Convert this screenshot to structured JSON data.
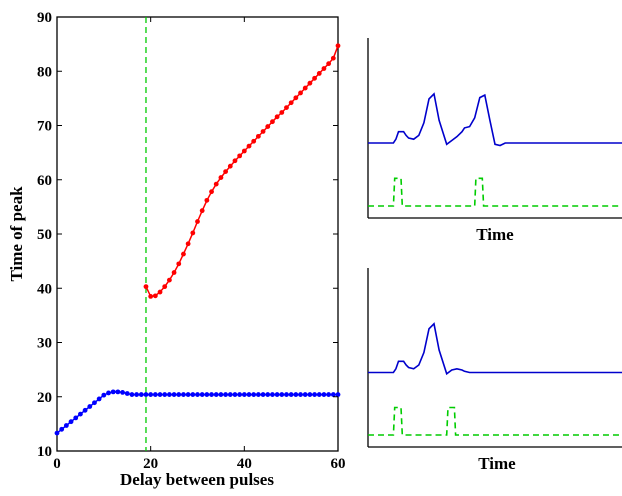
{
  "chart_data": [
    {
      "type": "scatter",
      "xlabel": "Delay between pulses",
      "ylabel": "Time of peak",
      "xlim": [
        0,
        60
      ],
      "ylim": [
        10,
        90
      ],
      "xticks": [
        0,
        20,
        40,
        60
      ],
      "yticks": [
        10,
        20,
        30,
        40,
        50,
        60,
        70,
        80,
        90
      ],
      "grid": false,
      "vertical_line": {
        "x": 19,
        "style": "dashed",
        "color": "#00cc00"
      },
      "series": [
        {
          "color": "#0000ff",
          "x": [
            0,
            1,
            2,
            3,
            4,
            5,
            6,
            7,
            8,
            9,
            10,
            11,
            12,
            13,
            14,
            15,
            16,
            17,
            18,
            19,
            20,
            21,
            22,
            23,
            24,
            25,
            26,
            27,
            28,
            29,
            30,
            31,
            32,
            33,
            34,
            35,
            36,
            37,
            38,
            39,
            40,
            41,
            42,
            43,
            44,
            45,
            46,
            47,
            48,
            49,
            50,
            51,
            52,
            53,
            54,
            55,
            56,
            57,
            58,
            59,
            60
          ],
          "y": [
            13.3,
            14.0,
            14.7,
            15.4,
            16.1,
            16.8,
            17.5,
            18.2,
            18.9,
            19.6,
            20.3,
            20.7,
            20.9,
            20.9,
            20.8,
            20.6,
            20.4,
            20.4,
            20.4,
            20.4,
            20.4,
            20.4,
            20.4,
            20.4,
            20.4,
            20.4,
            20.4,
            20.4,
            20.4,
            20.4,
            20.4,
            20.4,
            20.4,
            20.4,
            20.4,
            20.4,
            20.4,
            20.4,
            20.4,
            20.4,
            20.4,
            20.4,
            20.4,
            20.4,
            20.4,
            20.4,
            20.4,
            20.4,
            20.4,
            20.4,
            20.4,
            20.4,
            20.4,
            20.4,
            20.4,
            20.4,
            20.4,
            20.4,
            20.4,
            20.4,
            20.4
          ]
        },
        {
          "color": "#ff0000",
          "x": [
            19,
            20,
            21,
            22,
            23,
            24,
            25,
            26,
            27,
            28,
            29,
            30,
            31,
            32,
            33,
            34,
            35,
            36,
            37,
            38,
            39,
            40,
            41,
            42,
            43,
            44,
            45,
            46,
            47,
            48,
            49,
            50,
            51,
            52,
            53,
            54,
            55,
            56,
            57,
            58,
            59,
            60
          ],
          "y": [
            40.3,
            38.5,
            38.6,
            39.3,
            40.3,
            41.5,
            42.9,
            44.5,
            46.3,
            48.2,
            50.2,
            52.3,
            54.3,
            56.2,
            57.8,
            59.2,
            60.4,
            61.5,
            62.5,
            63.5,
            64.4,
            65.3,
            66.2,
            67.1,
            68.0,
            68.9,
            69.8,
            70.7,
            71.6,
            72.4,
            73.3,
            74.2,
            75.1,
            76.0,
            76.9,
            77.8,
            78.7,
            79.6,
            80.5,
            81.4,
            82.4,
            84.7
          ]
        }
      ]
    },
    {
      "type": "line",
      "xlabel": "Time",
      "series": [
        {
          "color": "#0000cc",
          "style": "solid",
          "x": [
            0,
            10,
            11,
            12,
            14,
            15,
            16,
            18,
            20,
            22,
            24,
            26,
            28,
            31,
            33,
            35,
            37,
            38,
            40,
            42,
            44,
            46,
            48,
            50,
            52,
            54,
            56,
            58,
            60,
            62,
            64,
            66,
            68,
            70,
            72,
            74,
            76,
            80,
            90,
            100
          ],
          "y": [
            0.5,
            0.5,
            0.53,
            0.59,
            0.59,
            0.56,
            0.54,
            0.53,
            0.56,
            0.66,
            0.85,
            0.89,
            0.68,
            0.49,
            0.52,
            0.55,
            0.59,
            0.62,
            0.63,
            0.7,
            0.86,
            0.88,
            0.68,
            0.49,
            0.48,
            0.5,
            0.5,
            0.5,
            0.5,
            0.5,
            0.5,
            0.5,
            0.5,
            0.5,
            0.5,
            0.5,
            0.5,
            0.5,
            0.5,
            0.5
          ]
        },
        {
          "color": "#00cc00",
          "style": "dashed",
          "x": [
            0,
            10,
            10.5,
            13,
            13.5,
            42,
            42.5,
            45,
            45.5,
            100
          ],
          "y": [
            0,
            0,
            0.22,
            0.22,
            0,
            0,
            0.22,
            0.22,
            0,
            0
          ]
        }
      ]
    },
    {
      "type": "line",
      "xlabel": "Time",
      "series": [
        {
          "color": "#0000cc",
          "style": "solid",
          "x": [
            0,
            10,
            11,
            12,
            14,
            15,
            16,
            18,
            20,
            22,
            24,
            26,
            28,
            31,
            33,
            35,
            37,
            38,
            40,
            42,
            44,
            46,
            48,
            50,
            52,
            54,
            56,
            58,
            60,
            100
          ],
          "y": [
            0.5,
            0.5,
            0.53,
            0.59,
            0.59,
            0.56,
            0.54,
            0.53,
            0.56,
            0.66,
            0.85,
            0.89,
            0.68,
            0.49,
            0.52,
            0.53,
            0.52,
            0.51,
            0.5,
            0.5,
            0.5,
            0.5,
            0.5,
            0.5,
            0.5,
            0.5,
            0.5,
            0.5,
            0.5,
            0.5
          ]
        },
        {
          "color": "#00cc00",
          "style": "dashed",
          "x": [
            0,
            10,
            10.5,
            13,
            13.5,
            31,
            31.5,
            34,
            34.5,
            100
          ],
          "y": [
            0,
            0,
            0.22,
            0.22,
            0,
            0,
            0.22,
            0.22,
            0,
            0
          ]
        }
      ]
    }
  ]
}
